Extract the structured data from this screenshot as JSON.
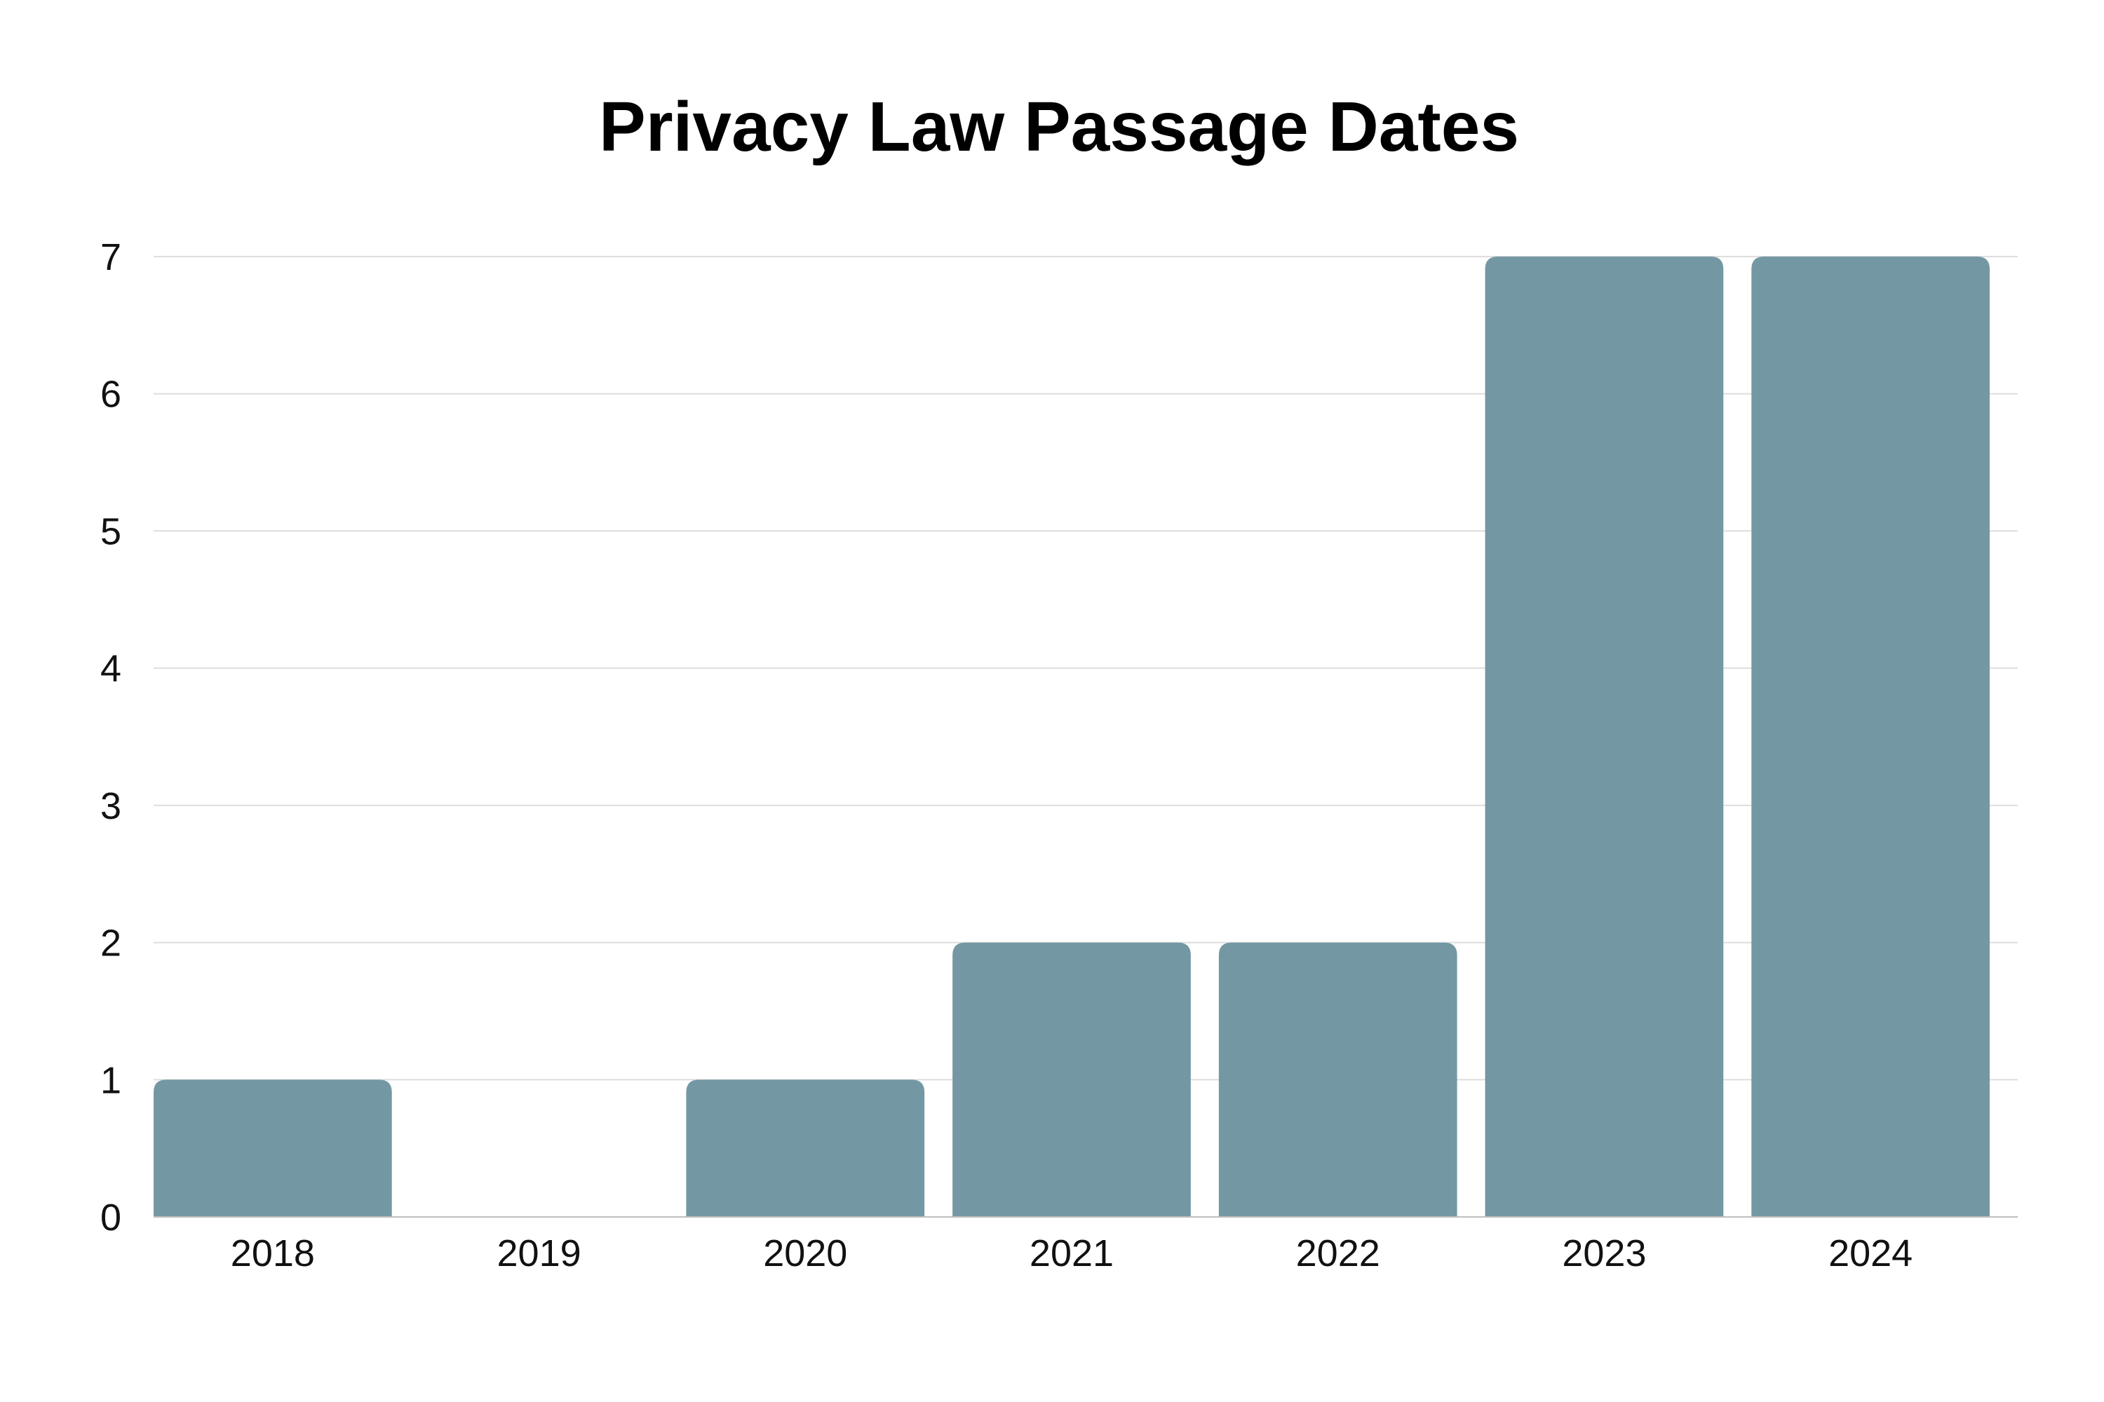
{
  "chart_data": {
    "type": "bar",
    "title": "Privacy Law Passage Dates",
    "xlabel": "",
    "ylabel": "",
    "categories": [
      "2018",
      "2019",
      "2020",
      "2021",
      "2022",
      "2023",
      "2024"
    ],
    "values": [
      1,
      0,
      1,
      2,
      2,
      7,
      7
    ],
    "ylim": [
      0,
      7
    ],
    "yticks": [
      "0",
      "1",
      "2",
      "3",
      "4",
      "5",
      "6",
      "7"
    ],
    "grid": true,
    "legend": "none",
    "colors": {
      "bar": "#7398a3"
    }
  }
}
